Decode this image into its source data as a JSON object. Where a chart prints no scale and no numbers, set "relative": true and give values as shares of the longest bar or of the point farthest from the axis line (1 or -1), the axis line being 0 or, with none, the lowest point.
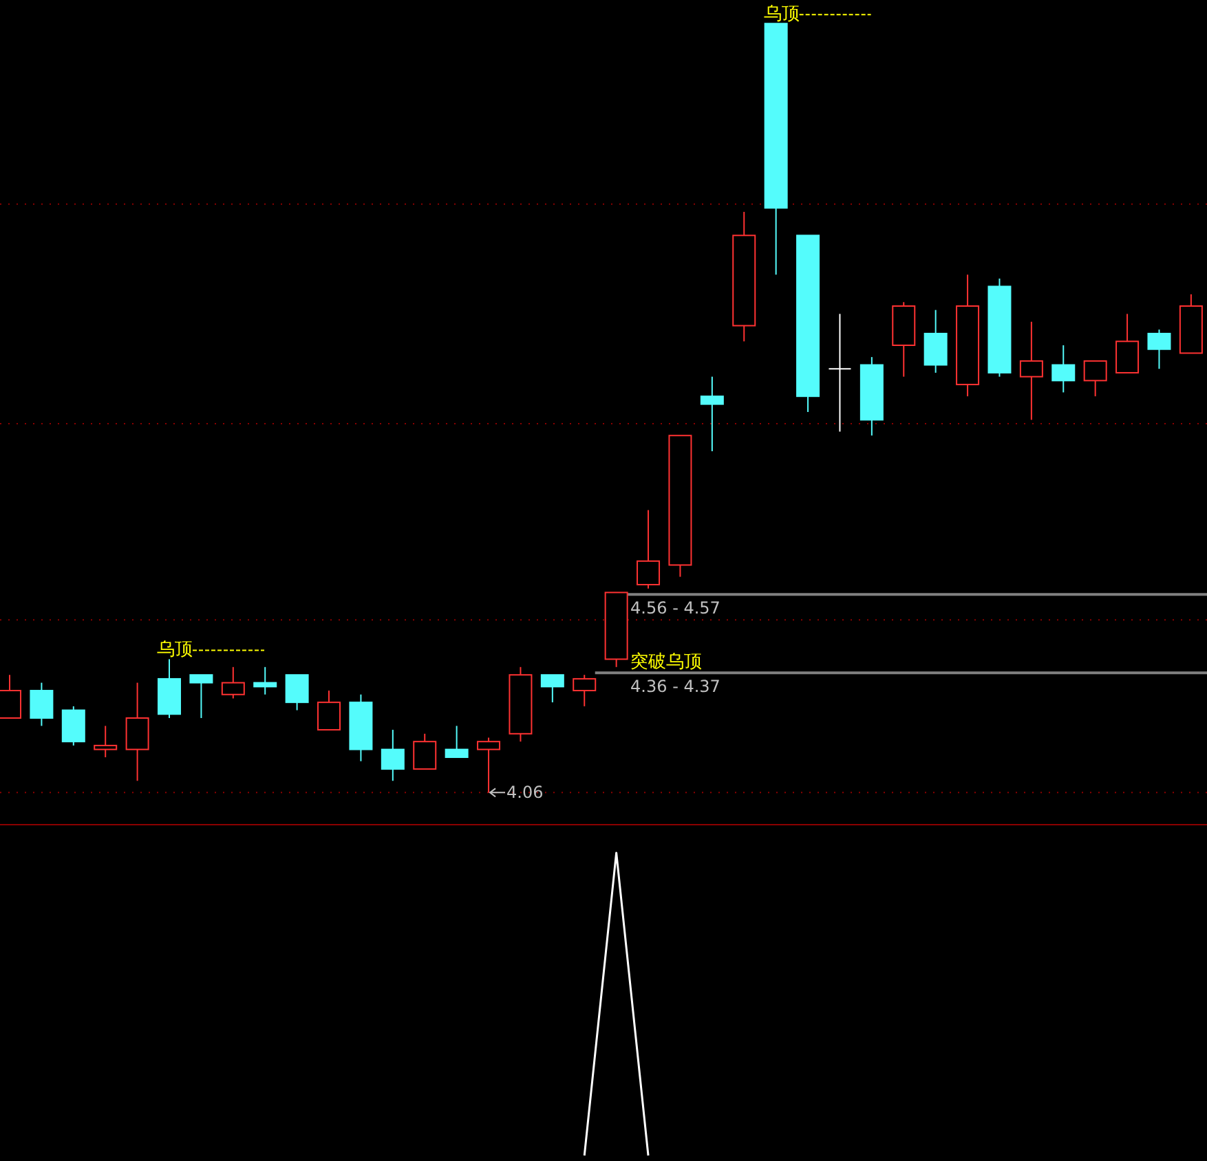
{
  "chart_data": [
    {
      "type": "candlestick",
      "grid": "y",
      "ylim": [
        3.98,
        6.08
      ],
      "yticks": [
        {
          "value": 4.06,
          "label": null
        },
        {
          "value": 4.5,
          "label": null
        },
        {
          "value": 5.0,
          "label": null
        },
        {
          "value": 5.56,
          "label": null
        }
      ],
      "categories": [
        null,
        null,
        null,
        null,
        null,
        null,
        null,
        null,
        null,
        null,
        null,
        null,
        null,
        null,
        null,
        null,
        null,
        null,
        null,
        null,
        null,
        null,
        null,
        null,
        null,
        null,
        null,
        null,
        null,
        null,
        null,
        null,
        null,
        null,
        null,
        null,
        null,
        null
      ],
      "ohlc": [
        [
          4.25,
          4.36,
          4.25,
          4.32
        ],
        [
          4.32,
          4.34,
          4.23,
          4.25
        ],
        [
          4.27,
          4.28,
          4.18,
          4.19
        ],
        [
          4.17,
          4.23,
          4.15,
          4.18
        ],
        [
          4.17,
          4.34,
          4.09,
          4.25
        ],
        [
          4.35,
          4.4,
          4.25,
          4.26
        ],
        [
          4.36,
          4.36,
          4.25,
          4.34
        ],
        [
          4.31,
          4.38,
          4.3,
          4.34
        ],
        [
          4.34,
          4.38,
          4.31,
          4.33
        ],
        [
          4.36,
          4.36,
          4.27,
          4.29
        ],
        [
          4.22,
          4.32,
          4.22,
          4.29
        ],
        [
          4.29,
          4.31,
          4.14,
          4.17
        ],
        [
          4.17,
          4.22,
          4.09,
          4.12
        ],
        [
          4.12,
          4.21,
          4.12,
          4.19
        ],
        [
          4.17,
          4.23,
          4.15,
          4.15
        ],
        [
          4.17,
          4.2,
          4.06,
          4.19
        ],
        [
          4.21,
          4.38,
          4.19,
          4.36
        ],
        [
          4.36,
          4.36,
          4.29,
          4.33
        ],
        [
          4.32,
          4.36,
          4.28,
          4.35
        ],
        [
          4.4,
          4.57,
          4.38,
          4.57
        ],
        [
          4.59,
          4.78,
          4.58,
          4.65
        ],
        [
          4.64,
          4.97,
          4.61,
          4.97
        ],
        [
          5.07,
          5.12,
          4.93,
          5.05
        ],
        [
          5.25,
          5.54,
          5.21,
          5.48
        ],
        [
          6.02,
          6.02,
          5.38,
          5.55
        ],
        [
          5.48,
          5.48,
          5.03,
          5.07
        ],
        [
          5.14,
          5.28,
          4.98,
          5.14
        ],
        [
          5.15,
          5.17,
          4.97,
          5.01
        ],
        [
          5.2,
          5.31,
          5.12,
          5.3
        ],
        [
          5.23,
          5.29,
          5.13,
          5.15
        ],
        [
          5.1,
          5.38,
          5.07,
          5.3
        ],
        [
          5.35,
          5.37,
          5.12,
          5.13
        ],
        [
          5.12,
          5.26,
          5.01,
          5.16
        ],
        [
          5.15,
          5.2,
          5.08,
          5.11
        ],
        [
          5.11,
          5.16,
          5.07,
          5.16
        ],
        [
          5.13,
          5.28,
          5.13,
          5.21
        ],
        [
          5.23,
          5.24,
          5.14,
          5.19
        ],
        [
          5.18,
          5.33,
          5.18,
          5.3
        ]
      ],
      "colors": [
        "#ff3232",
        "#54fcfc",
        "#54fcfc",
        "#ff3232",
        "#ff3232",
        "#54fcfc",
        "#54fcfc",
        "#ff3232",
        "#54fcfc",
        "#54fcfc",
        "#ff3232",
        "#54fcfc",
        "#54fcfc",
        "#ff3232",
        "#54fcfc",
        "#ff3232",
        "#ff3232",
        "#54fcfc",
        "#ff3232",
        "#ff3232",
        "#ff3232",
        "#ff3232",
        "#54fcfc",
        "#ff3232",
        "#54fcfc",
        "#54fcfc",
        "#ffffff",
        "#54fcfc",
        "#ff3232",
        "#54fcfc",
        "#ff3232",
        "#54fcfc",
        "#ff3232",
        "#54fcfc",
        "#ff3232",
        "#ff3232",
        "#54fcfc",
        "#ff3232"
      ],
      "ref_lines": [
        {
          "axis": "y",
          "value": 4.565,
          "label": "4.56 - 4.57",
          "color": "#808080"
        },
        {
          "axis": "y",
          "value": 4.365,
          "label": "4.36 - 4.37",
          "color": "#808080"
        }
      ],
      "annotations": [
        "乌顶",
        "乌顶",
        "4.06",
        "突破乌顶"
      ]
    },
    {
      "type": "line",
      "relative": true,
      "categories": [
        null,
        null,
        null,
        null,
        null,
        null,
        null,
        null,
        null,
        null,
        null,
        null,
        null,
        null,
        null,
        null,
        null,
        null,
        null,
        null,
        null,
        null,
        null,
        null,
        null,
        null,
        null,
        null,
        null,
        null,
        null,
        null,
        null,
        null,
        null,
        null,
        null,
        null
      ],
      "series": [
        {
          "color": "#ffffff",
          "values": [
            null,
            null,
            null,
            null,
            null,
            null,
            null,
            null,
            null,
            null,
            null,
            null,
            null,
            null,
            null,
            null,
            null,
            null,
            0,
            1,
            0,
            null,
            null,
            null,
            null,
            null,
            null,
            null,
            null,
            null,
            null,
            null,
            null,
            null,
            null,
            null,
            null,
            null
          ]
        }
      ]
    }
  ]
}
